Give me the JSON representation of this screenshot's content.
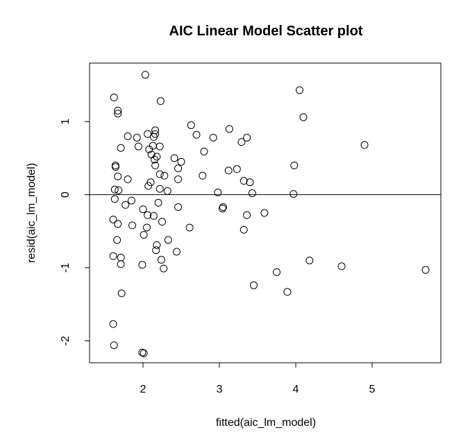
{
  "chart_data": {
    "type": "scatter",
    "title": "AIC Linear Model Scatter plot",
    "xlabel": "fitted(aic_lm_model)",
    "ylabel": "resid(aic_lm_model)",
    "xlim": [
      1.3,
      5.9
    ],
    "ylim": [
      -2.3,
      1.8
    ],
    "xticks": [
      2,
      3,
      4,
      5
    ],
    "yticks": [
      -2,
      -1,
      0,
      1
    ],
    "reference_line_y": 0,
    "point_style": "open-circle",
    "points": [
      [
        2.03,
        1.64
      ],
      [
        1.62,
        1.33
      ],
      [
        2.23,
        1.28
      ],
      [
        4.05,
        1.43
      ],
      [
        4.1,
        1.06
      ],
      [
        1.67,
        1.15
      ],
      [
        1.67,
        1.11
      ],
      [
        2.63,
        0.95
      ],
      [
        2.16,
        0.88
      ],
      [
        3.13,
        0.9
      ],
      [
        2.06,
        0.83
      ],
      [
        2.16,
        0.83
      ],
      [
        2.7,
        0.82
      ],
      [
        1.8,
        0.8
      ],
      [
        1.92,
        0.78
      ],
      [
        2.14,
        0.79
      ],
      [
        2.92,
        0.78
      ],
      [
        3.36,
        0.78
      ],
      [
        3.29,
        0.72
      ],
      [
        4.9,
        0.68
      ],
      [
        1.71,
        0.64
      ],
      [
        1.94,
        0.66
      ],
      [
        2.13,
        0.67
      ],
      [
        2.22,
        0.66
      ],
      [
        2.08,
        0.62
      ],
      [
        2.8,
        0.59
      ],
      [
        2.11,
        0.55
      ],
      [
        2.18,
        0.52
      ],
      [
        2.15,
        0.48
      ],
      [
        2.41,
        0.5
      ],
      [
        2.5,
        0.45
      ],
      [
        2.16,
        0.4
      ],
      [
        1.64,
        0.4
      ],
      [
        1.64,
        0.38
      ],
      [
        3.98,
        0.4
      ],
      [
        2.46,
        0.36
      ],
      [
        3.12,
        0.33
      ],
      [
        3.23,
        0.35
      ],
      [
        2.22,
        0.28
      ],
      [
        2.28,
        0.26
      ],
      [
        2.78,
        0.26
      ],
      [
        1.67,
        0.25
      ],
      [
        1.8,
        0.21
      ],
      [
        2.46,
        0.21
      ],
      [
        3.32,
        0.19
      ],
      [
        3.4,
        0.17
      ],
      [
        2.1,
        0.17
      ],
      [
        2.07,
        0.12
      ],
      [
        2.22,
        0.08
      ],
      [
        1.63,
        0.07
      ],
      [
        1.68,
        0.06
      ],
      [
        2.32,
        0.05
      ],
      [
        2.98,
        0.03
      ],
      [
        3.43,
        0.02
      ],
      [
        3.97,
        0.01
      ],
      [
        1.63,
        -0.06
      ],
      [
        1.85,
        -0.08
      ],
      [
        2.2,
        -0.11
      ],
      [
        1.77,
        -0.14
      ],
      [
        2.46,
        -0.17
      ],
      [
        3.05,
        -0.17
      ],
      [
        3.04,
        -0.19
      ],
      [
        2.0,
        -0.2
      ],
      [
        3.59,
        -0.25
      ],
      [
        3.36,
        -0.28
      ],
      [
        2.06,
        -0.28
      ],
      [
        2.14,
        -0.29
      ],
      [
        1.61,
        -0.34
      ],
      [
        2.25,
        -0.37
      ],
      [
        1.67,
        -0.4
      ],
      [
        1.86,
        -0.42
      ],
      [
        2.05,
        -0.45
      ],
      [
        2.61,
        -0.45
      ],
      [
        3.32,
        -0.48
      ],
      [
        2.01,
        -0.55
      ],
      [
        1.66,
        -0.62
      ],
      [
        2.33,
        -0.62
      ],
      [
        2.18,
        -0.69
      ],
      [
        2.17,
        -0.76
      ],
      [
        2.44,
        -0.78
      ],
      [
        1.61,
        -0.84
      ],
      [
        1.71,
        -0.86
      ],
      [
        2.24,
        -0.89
      ],
      [
        4.18,
        -0.9
      ],
      [
        1.71,
        -0.95
      ],
      [
        1.99,
        -0.96
      ],
      [
        4.6,
        -0.98
      ],
      [
        2.27,
        -1.01
      ],
      [
        5.7,
        -1.03
      ],
      [
        3.75,
        -1.06
      ],
      [
        3.45,
        -1.24
      ],
      [
        3.89,
        -1.33
      ],
      [
        1.72,
        -1.35
      ],
      [
        1.61,
        -1.77
      ],
      [
        1.62,
        -2.06
      ],
      [
        1.99,
        -2.16
      ],
      [
        2.01,
        -2.17
      ]
    ]
  }
}
